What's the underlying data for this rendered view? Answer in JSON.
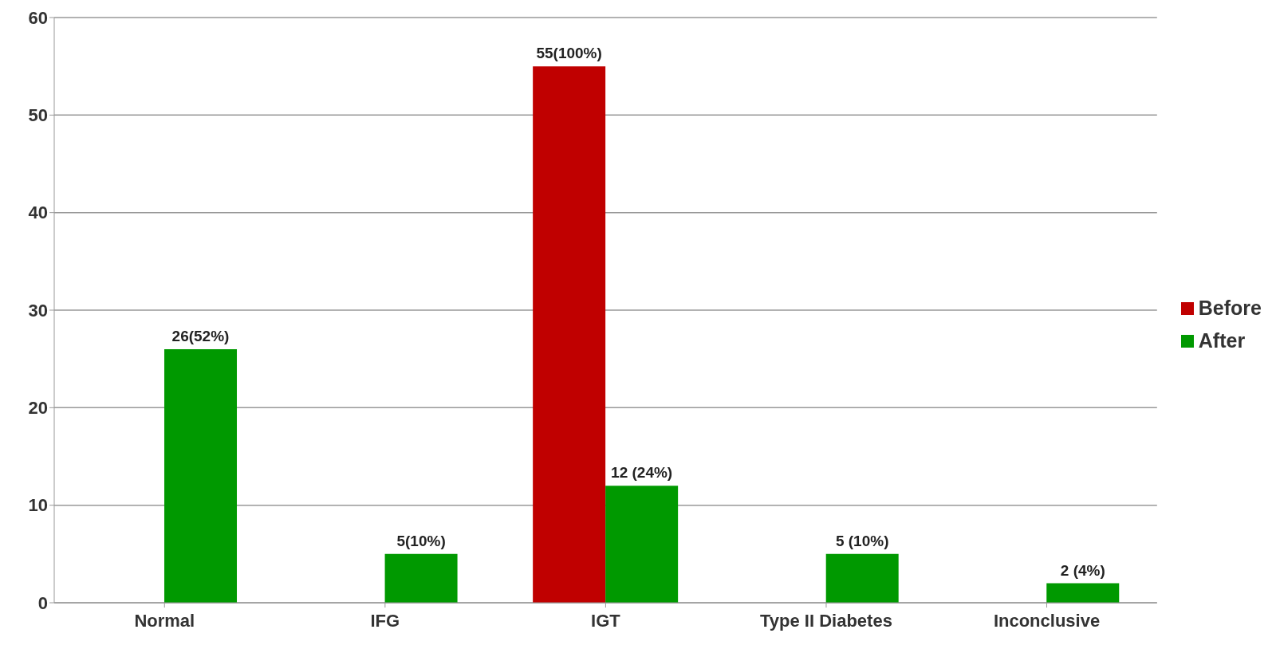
{
  "chart_data": {
    "type": "bar",
    "categories": [
      "Normal",
      "IFG",
      "IGT",
      "Type II Diabetes",
      "Inconclusive"
    ],
    "series": [
      {
        "name": "Before",
        "color": "#c00000",
        "values": [
          null,
          null,
          55,
          null,
          null
        ],
        "value_labels": [
          null,
          null,
          "55(100%)",
          null,
          null
        ]
      },
      {
        "name": "After",
        "color": "#009900",
        "values": [
          26,
          5,
          12,
          5,
          2
        ],
        "value_labels": [
          "26(52%)",
          "5(10%)",
          "12 (24%)",
          "5 (10%)",
          "2 (4%)"
        ]
      }
    ],
    "ylim": [
      0,
      60
    ],
    "yticks": [
      0,
      10,
      20,
      30,
      40,
      50,
      60
    ],
    "grid": "y",
    "legend": "right"
  }
}
